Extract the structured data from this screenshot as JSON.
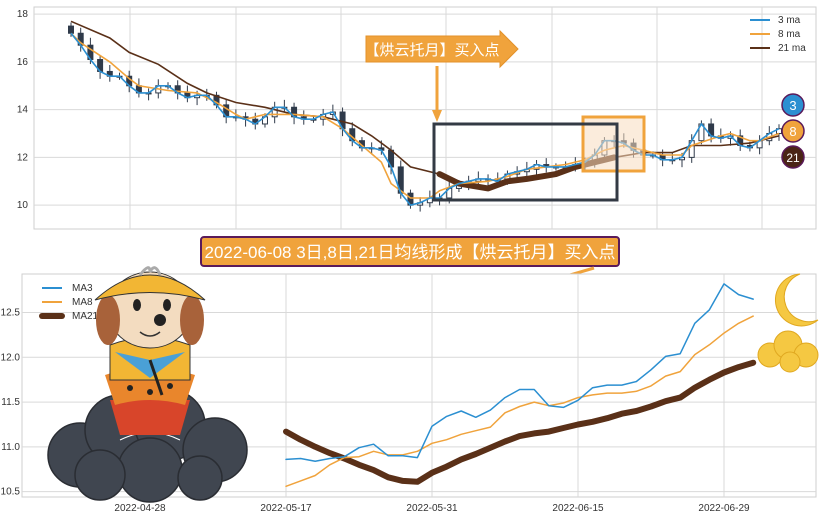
{
  "colors": {
    "ma3": "#2b8fd1",
    "ma8": "#f0a33c",
    "ma21": "#5a3018",
    "candle_down": "#2f3a4a",
    "annotation": "#f0a33c",
    "annotation_border": "#5a1a5a",
    "grid": "#d9d9d9"
  },
  "annotations": {
    "top_arrow_label": "【烘云托月】买入点",
    "bottom_title": "2022-06-08 3日,8日,21日均线形成【烘云托月】买入点",
    "badges": [
      "3",
      "8",
      "21"
    ]
  },
  "chart_data": [
    {
      "type": "candlestick",
      "title": "",
      "ylim": [
        9.0,
        18.3
      ],
      "yticks": [
        10,
        12,
        14,
        16,
        18
      ],
      "grid": true,
      "legend_placement": "top-right",
      "legend": [
        "3 ma",
        "8 ma",
        "21 ma"
      ],
      "close": [
        17.2,
        16.7,
        16.1,
        15.6,
        15.4,
        15.4,
        15.0,
        14.7,
        14.7,
        15.0,
        15.0,
        14.7,
        14.5,
        14.6,
        14.6,
        14.2,
        13.7,
        13.7,
        13.6,
        13.4,
        13.7,
        14.1,
        14.1,
        13.7,
        13.6,
        13.6,
        13.8,
        13.9,
        13.2,
        12.7,
        12.4,
        12.4,
        12.3,
        11.6,
        10.5,
        10.0,
        10.1,
        10.3,
        10.3,
        10.7,
        10.9,
        11.0,
        11.1,
        11.1,
        11.0,
        11.3,
        11.4,
        11.5,
        11.7,
        11.6,
        11.6,
        11.6,
        11.7,
        11.8,
        12.1,
        12.7,
        12.7,
        12.6,
        12.3,
        12.1,
        12.1,
        11.9,
        11.9,
        12.0,
        12.7,
        13.4,
        12.9,
        12.8,
        12.9,
        12.5,
        12.4,
        12.7,
        13.0,
        13.2
      ],
      "ma8": [
        [
          0,
          17.2
        ],
        [
          1,
          16.8
        ],
        [
          4,
          16.0
        ],
        [
          6,
          15.3
        ],
        [
          7,
          15.0
        ],
        [
          10,
          14.8
        ],
        [
          13,
          14.7
        ],
        [
          15,
          14.3
        ],
        [
          17,
          13.8
        ],
        [
          18,
          13.6
        ],
        [
          20,
          13.8
        ],
        [
          23,
          13.8
        ],
        [
          26,
          13.7
        ],
        [
          28,
          13.2
        ],
        [
          30,
          12.5
        ],
        [
          32,
          11.8
        ],
        [
          33,
          10.9
        ],
        [
          35,
          10.3
        ],
        [
          37,
          10.3
        ],
        [
          38,
          10.6
        ],
        [
          40,
          10.9
        ],
        [
          43,
          11.0
        ],
        [
          45,
          11.2
        ],
        [
          47,
          11.5
        ],
        [
          49,
          11.6
        ],
        [
          51,
          11.7
        ],
        [
          53,
          11.9
        ],
        [
          55,
          12.3
        ],
        [
          57,
          12.5
        ],
        [
          59,
          12.3
        ],
        [
          61,
          12.1
        ],
        [
          63,
          12.1
        ],
        [
          64,
          12.5
        ],
        [
          67,
          12.9
        ],
        [
          68,
          13.0
        ],
        [
          70,
          12.7
        ],
        [
          71,
          12.7
        ],
        [
          73,
          13.0
        ]
      ],
      "ma21": [
        [
          0,
          17.7
        ],
        [
          4,
          17.0
        ],
        [
          6,
          16.4
        ],
        [
          9,
          15.9
        ],
        [
          12,
          15.1
        ],
        [
          14,
          14.7
        ],
        [
          17,
          14.3
        ],
        [
          20,
          14.1
        ],
        [
          23,
          13.8
        ],
        [
          26,
          13.7
        ],
        [
          29,
          13.4
        ],
        [
          31,
          12.9
        ],
        [
          33,
          12.3
        ],
        [
          35,
          11.6
        ],
        [
          38,
          11.3
        ],
        [
          40,
          10.9
        ],
        [
          43,
          10.7
        ],
        [
          45,
          11.0
        ],
        [
          47,
          11.1
        ],
        [
          50,
          11.3
        ],
        [
          52,
          11.6
        ],
        [
          56,
          12.0
        ],
        [
          59,
          12.2
        ],
        [
          62,
          12.2
        ],
        [
          64,
          12.5
        ],
        [
          67,
          12.5
        ],
        [
          70,
          12.6
        ],
        [
          73,
          12.9
        ]
      ],
      "highlight_ma21_range": [
        38,
        56
      ]
    },
    {
      "type": "line",
      "title": "",
      "ylim": [
        10.44,
        12.93
      ],
      "yticks": [
        10.5,
        11.0,
        11.5,
        12.0,
        12.5
      ],
      "xticks": [
        "2022-04-28",
        "2022-05-17",
        "2022-05-31",
        "2022-06-15",
        "2022-06-29"
      ],
      "grid": true,
      "legend_placement": "top-left",
      "x": [
        "2022-05-17",
        "2022-05-18",
        "2022-05-19",
        "2022-05-20",
        "2022-05-23",
        "2022-05-24",
        "2022-05-25",
        "2022-05-26",
        "2022-05-27",
        "2022-05-30",
        "2022-05-31",
        "2022-06-01",
        "2022-06-02",
        "2022-06-06",
        "2022-06-07",
        "2022-06-08",
        "2022-06-09",
        "2022-06-10",
        "2022-06-13",
        "2022-06-14",
        "2022-06-15",
        "2022-06-16",
        "2022-06-17",
        "2022-06-20",
        "2022-06-21",
        "2022-06-22",
        "2022-06-23",
        "2022-06-24",
        "2022-06-27",
        "2022-06-28",
        "2022-06-29",
        "2022-06-30",
        "2022-07-01"
      ],
      "series": [
        {
          "name": "MA3",
          "values": [
            10.86,
            10.87,
            10.84,
            10.87,
            10.89,
            10.99,
            11.03,
            10.9,
            10.9,
            10.88,
            11.23,
            11.34,
            11.4,
            11.33,
            11.41,
            11.55,
            11.64,
            11.64,
            11.46,
            11.44,
            11.52,
            11.66,
            11.69,
            11.69,
            11.73,
            11.86,
            12.01,
            12.04,
            12.38,
            12.53,
            12.82,
            12.7,
            12.65
          ]
        },
        {
          "name": "MA8",
          "values": [
            10.56,
            10.62,
            10.68,
            10.8,
            10.88,
            10.89,
            10.95,
            10.91,
            10.91,
            10.95,
            11.04,
            11.08,
            11.14,
            11.18,
            11.22,
            11.38,
            11.45,
            11.5,
            11.46,
            11.49,
            11.55,
            11.58,
            11.6,
            11.6,
            11.62,
            11.68,
            11.79,
            11.84,
            12.03,
            12.14,
            12.27,
            12.38,
            12.46
          ]
        },
        {
          "name": "MA21",
          "values": [
            11.17,
            11.08,
            11.0,
            10.93,
            10.87,
            10.8,
            10.74,
            10.66,
            10.62,
            10.61,
            10.71,
            10.78,
            10.86,
            10.92,
            10.99,
            11.06,
            11.12,
            11.15,
            11.17,
            11.21,
            11.25,
            11.28,
            11.32,
            11.37,
            11.4,
            11.45,
            11.51,
            11.55,
            11.66,
            11.75,
            11.83,
            11.89,
            11.94
          ]
        }
      ]
    }
  ]
}
